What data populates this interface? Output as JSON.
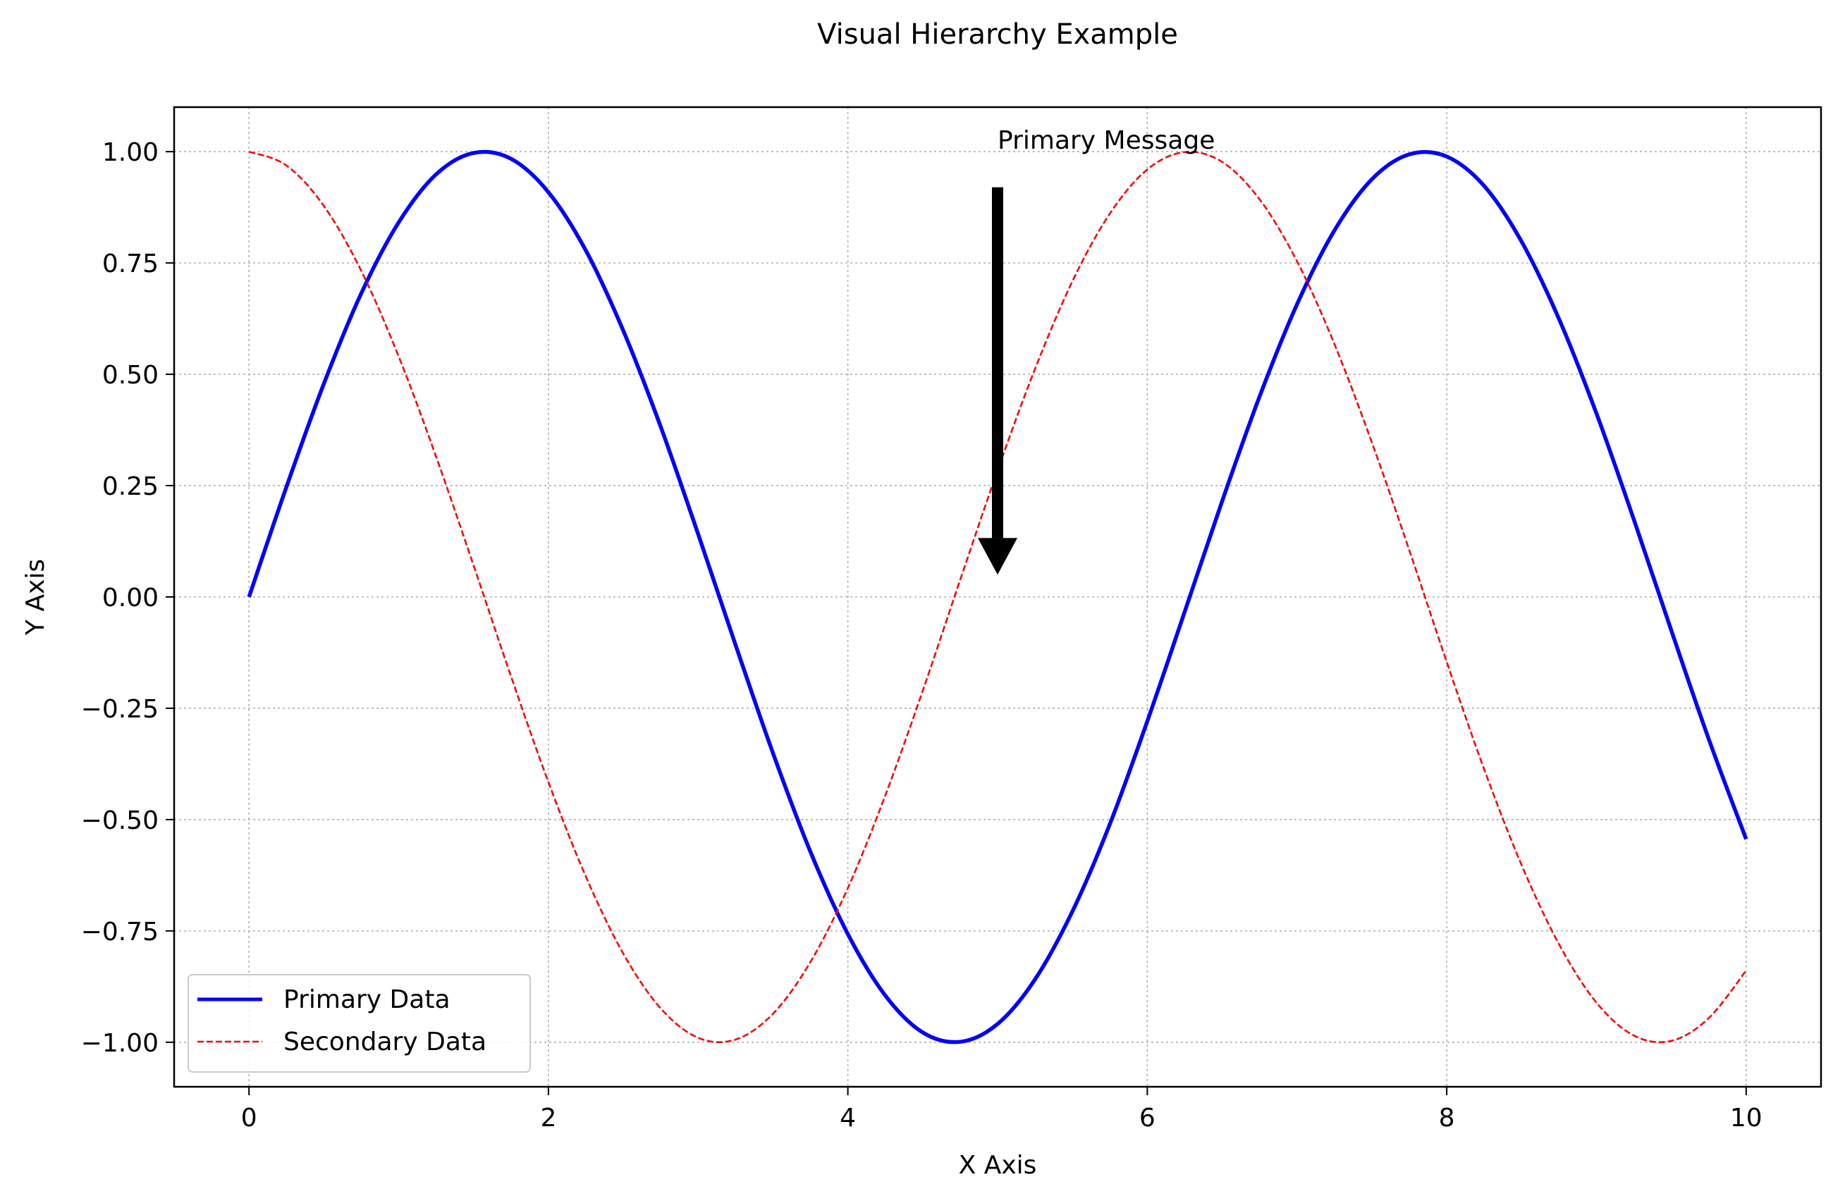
{
  "chart_data": {
    "type": "line",
    "title": "Visual Hierarchy Example",
    "xlabel": "X Axis",
    "ylabel": "Y Axis",
    "xlim": [
      -0.5,
      10.5
    ],
    "ylim": [
      -1.1,
      1.1
    ],
    "xticks": [
      0,
      2,
      4,
      6,
      8,
      10
    ],
    "yticks": [
      1.0,
      0.75,
      0.5,
      0.25,
      0.0,
      -0.25,
      -0.5,
      -0.75,
      -1.0
    ],
    "ytick_labels": [
      "1.00",
      "0.75",
      "0.50",
      "0.25",
      "0.00",
      "−0.25",
      "−0.50",
      "−0.75",
      "−1.00"
    ],
    "grid": true,
    "legend_position": "lower-left",
    "series": [
      {
        "name": "Primary Data",
        "color": "#0000ff",
        "style": "solid",
        "x": [
          0,
          0.25,
          0.5,
          0.75,
          1,
          1.25,
          1.5,
          1.75,
          2,
          2.25,
          2.5,
          2.75,
          3,
          3.25,
          3.5,
          3.75,
          4,
          4.25,
          4.5,
          4.75,
          5,
          5.25,
          5.5,
          5.75,
          6,
          6.25,
          6.5,
          6.75,
          7,
          7.25,
          7.5,
          7.75,
          8,
          8.25,
          8.5,
          8.75,
          9,
          9.25,
          9.5,
          9.75,
          10
        ],
        "y": [
          0,
          0.247,
          0.479,
          0.682,
          0.841,
          0.949,
          0.997,
          0.984,
          0.909,
          0.778,
          0.598,
          0.382,
          0.141,
          -0.108,
          -0.351,
          -0.572,
          -0.757,
          -0.895,
          -0.978,
          -0.999,
          -0.959,
          -0.859,
          -0.706,
          -0.51,
          -0.279,
          -0.033,
          0.215,
          0.45,
          0.657,
          0.823,
          0.938,
          0.994,
          0.989,
          0.923,
          0.798,
          0.624,
          0.412,
          0.174,
          -0.075,
          -0.319,
          -0.544
        ]
      },
      {
        "name": "Secondary Data",
        "color": "#ff0000",
        "style": "dashed",
        "x": [
          0,
          0.25,
          0.5,
          0.75,
          1,
          1.25,
          1.5,
          1.75,
          2,
          2.25,
          2.5,
          2.75,
          3,
          3.25,
          3.5,
          3.75,
          4,
          4.25,
          4.5,
          4.75,
          5,
          5.25,
          5.5,
          5.75,
          6,
          6.25,
          6.5,
          6.75,
          7,
          7.25,
          7.5,
          7.75,
          8,
          8.25,
          8.5,
          8.75,
          9,
          9.25,
          9.5,
          9.75,
          10
        ],
        "y": [
          1,
          0.969,
          0.878,
          0.732,
          0.54,
          0.315,
          0.071,
          -0.178,
          -0.416,
          -0.628,
          -0.801,
          -0.924,
          -0.99,
          -0.994,
          -0.936,
          -0.82,
          -0.654,
          -0.446,
          -0.211,
          0.038,
          0.284,
          0.512,
          0.709,
          0.861,
          0.96,
          0.999,
          0.977,
          0.893,
          0.754,
          0.568,
          0.347,
          0.105,
          -0.146,
          -0.387,
          -0.602,
          -0.78,
          -0.911,
          -0.985,
          -0.997,
          -0.946,
          -0.839
        ]
      }
    ],
    "annotation": {
      "text": "Primary Message",
      "text_x": 5.0,
      "text_y": 1.0,
      "arrow_from": [
        5.0,
        0.92
      ],
      "arrow_to": [
        5.0,
        0.05
      ]
    }
  }
}
